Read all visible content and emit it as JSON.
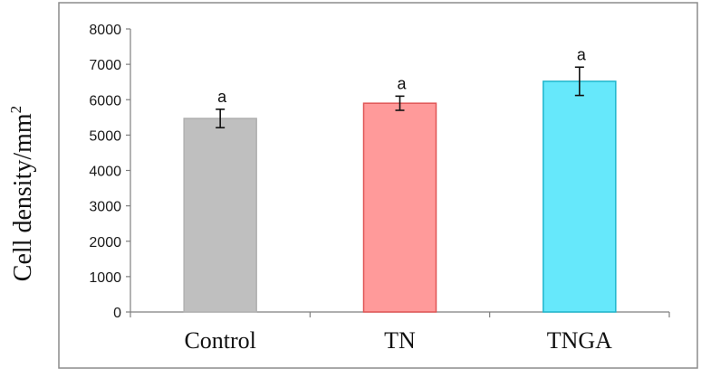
{
  "chart_data": {
    "type": "bar",
    "title": "",
    "xlabel": "",
    "ylabel": "Cell density/mm",
    "ylabel_superscript": "2",
    "categories": [
      "Control",
      "TN",
      "TNGA"
    ],
    "values": [
      5470,
      5900,
      6520
    ],
    "errors": [
      260,
      200,
      400
    ],
    "data_labels": [
      "a",
      "a",
      "a"
    ],
    "ylim": [
      0,
      8000
    ],
    "yticks": [
      0,
      1000,
      2000,
      3000,
      4000,
      5000,
      6000,
      7000,
      8000
    ],
    "grid": false,
    "legend": "none",
    "colors": {
      "fills": [
        "#bfbfbf",
        "#ff9a9a",
        "#66e8fb"
      ],
      "strokes": [
        "#b0b0b0",
        "#e05555",
        "#1fb6cc"
      ],
      "axis": "#7f7f7f",
      "frame": "#8c8c8c",
      "error": "#111111"
    }
  }
}
